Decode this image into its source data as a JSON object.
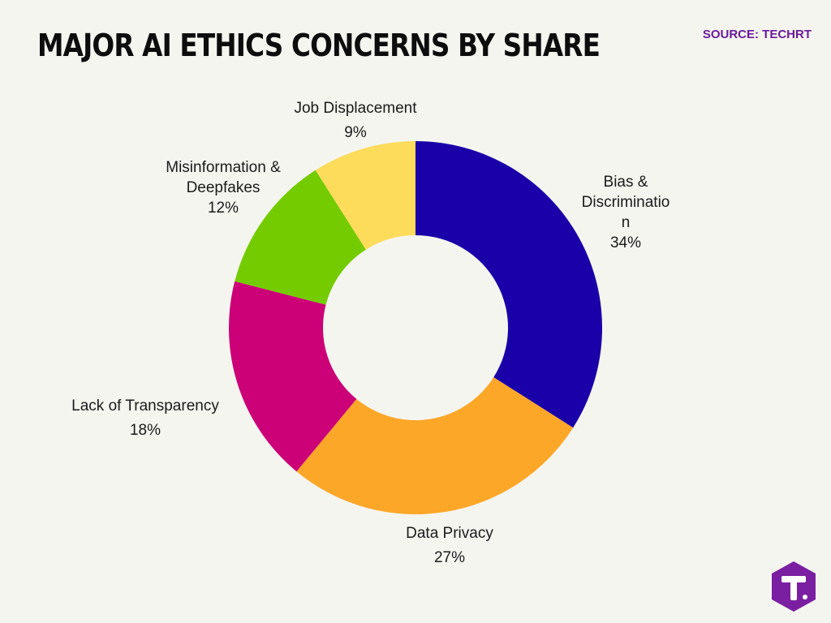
{
  "header": {
    "title": "MAJOR AI ETHICS CONCERNS BY SHARE",
    "source": "SOURCE: TECHRT"
  },
  "chart_data": {
    "type": "pie",
    "donut": true,
    "start_angle": "12 o'clock, clockwise",
    "slices": [
      {
        "label_lines": [
          "Bias &",
          "Discriminatio",
          "n"
        ],
        "value": 34,
        "value_label": "34%",
        "color": "#1a00a8"
      },
      {
        "label_lines": [
          "Data Privacy"
        ],
        "value": 27,
        "value_label": "27%",
        "color": "#fda728"
      },
      {
        "label_lines": [
          "Lack of Transparency"
        ],
        "value": 18,
        "value_label": "18%",
        "color": "#cc0077"
      },
      {
        "label_lines": [
          "Misinformation &",
          "Deepfakes"
        ],
        "value": 12,
        "value_label": "12%",
        "color": "#74cc00"
      },
      {
        "label_lines": [
          "Job Displacement"
        ],
        "value": 9,
        "value_label": "9%",
        "color": "#fddc5c"
      }
    ]
  },
  "logo": {
    "icon": "techrt-t-hexagon-icon",
    "color": "#7b1fa2"
  }
}
